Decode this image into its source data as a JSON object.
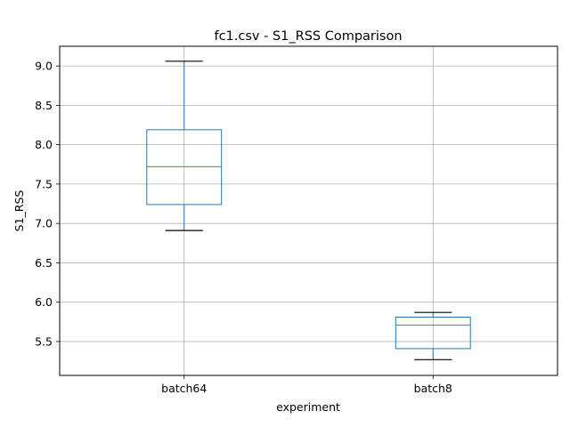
{
  "chart_data": {
    "type": "box",
    "title": "fc1.csv - S1_RSS Comparison",
    "xlabel": "experiment",
    "ylabel": "S1_RSS",
    "ylim": [
      5.07,
      9.25
    ],
    "yticks": [
      "5.5",
      "6.0",
      "6.5",
      "7.0",
      "7.5",
      "8.0",
      "8.5",
      "9.0"
    ],
    "grid": true,
    "categories": [
      "batch64",
      "batch8"
    ],
    "boxes": [
      {
        "name": "batch64",
        "whisker_low": 6.91,
        "q1": 7.24,
        "median": 7.72,
        "q3": 8.19,
        "whisker_high": 9.06
      },
      {
        "name": "batch8",
        "whisker_low": 5.27,
        "q1": 5.41,
        "median": 5.71,
        "q3": 5.81,
        "whisker_high": 5.87
      }
    ],
    "colors": {
      "box": "#1f77b4",
      "median": "#2ca02c",
      "whisker": "#1f77b4",
      "cap": "#000000",
      "grid": "#b0b0b0"
    }
  }
}
